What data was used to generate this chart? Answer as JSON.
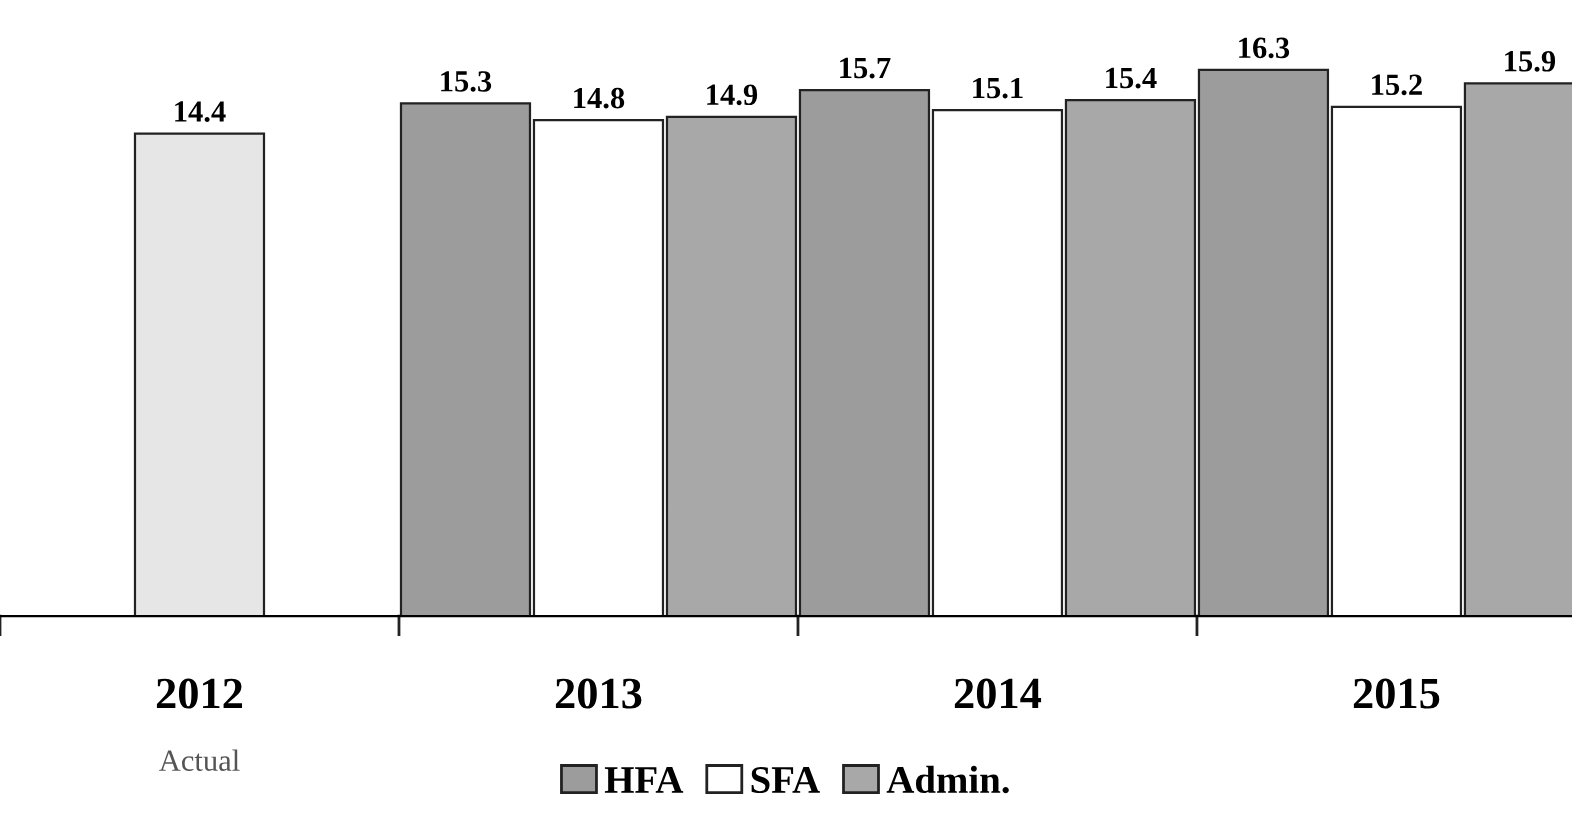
{
  "chart_data": {
    "type": "bar",
    "categories": [
      "2012",
      "2013",
      "2014",
      "2015"
    ],
    "series": [
      {
        "name": "HFA",
        "color": "#9c9c9c",
        "values": [
          null,
          15.3,
          15.7,
          16.3
        ]
      },
      {
        "name": "SFA",
        "color": "#ffffff",
        "colors": [
          "#e6e6e6",
          "#ffffff",
          "#ffffff",
          "#ffffff"
        ],
        "values": [
          14.4,
          14.8,
          15.1,
          15.2
        ]
      },
      {
        "name": "Admin.",
        "color": "#a8a8a8",
        "values": [
          null,
          14.9,
          15.4,
          15.9
        ]
      }
    ],
    "data_labels": true,
    "legend": "bottom",
    "grid": false,
    "annotations": [
      "Actual"
    ]
  }
}
